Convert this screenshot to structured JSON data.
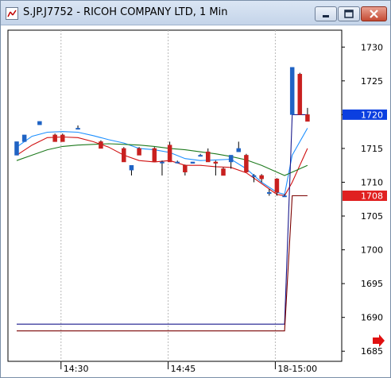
{
  "window": {
    "title": "S.JP.J7752 - RICOH COMPANY LTD, 1 Min",
    "controls": [
      "minimize",
      "maximize",
      "close"
    ]
  },
  "icons": {
    "app": "chart-icon",
    "minimize": "minimize-icon",
    "maximize": "maximize-icon",
    "close": "close-icon",
    "scroll": "red-arrow-right-icon"
  },
  "colors": {
    "up_candle": "#1f63c4",
    "down_candle": "#c8201f",
    "blue_line": "#1e90ff",
    "red_line": "#d01010",
    "green_line": "#1e7a1e",
    "navy_line": "#1a1a8c",
    "maroon_line": "#7a0000",
    "current_price_bg": "#0b3fe0",
    "current_low_bg": "#e02020"
  },
  "chart_data": {
    "type": "candlestick",
    "ylim": [
      1683.5,
      1732.5
    ],
    "y_ticks": [
      1730,
      1725,
      1720,
      1715,
      1710,
      1705,
      1700,
      1695,
      1690,
      1685
    ],
    "x_tick_labels": [
      "14:30",
      "14:45",
      "18-15:00"
    ],
    "current_price_label": "1720",
    "current_low_label": "1708",
    "candles": [
      {
        "t": 0,
        "o": 1714,
        "h": 1716,
        "l": 1714,
        "c": 1716
      },
      {
        "t": 1,
        "o": 1716,
        "h": 1717,
        "l": 1716,
        "c": 1717
      },
      {
        "t": 3,
        "o": 1718.5,
        "h": 1719,
        "l": 1718.5,
        "c": 1719
      },
      {
        "t": 5,
        "o": 1717,
        "h": 1717.2,
        "l": 1716,
        "c": 1716
      },
      {
        "t": 6,
        "o": 1717,
        "h": 1717.2,
        "l": 1716,
        "c": 1716
      },
      {
        "t": 8,
        "o": 1718,
        "h": 1718.4,
        "l": 1718,
        "c": 1718
      },
      {
        "t": 11,
        "o": 1716,
        "h": 1716.2,
        "l": 1715,
        "c": 1715
      },
      {
        "t": 14,
        "o": 1715,
        "h": 1715.2,
        "l": 1713,
        "c": 1713
      },
      {
        "t": 15,
        "o": 1711.8,
        "h": 1712.5,
        "l": 1711,
        "c": 1712.5
      },
      {
        "t": 16,
        "o": 1715,
        "h": 1715.2,
        "l": 1714,
        "c": 1714
      },
      {
        "t": 18,
        "o": 1715,
        "h": 1715.2,
        "l": 1713,
        "c": 1713
      },
      {
        "t": 19,
        "o": 1713,
        "h": 1713.2,
        "l": 1711,
        "c": 1713
      },
      {
        "t": 20,
        "o": 1715.5,
        "h": 1716,
        "l": 1713,
        "c": 1713
      },
      {
        "t": 21,
        "o": 1713,
        "h": 1713.2,
        "l": 1713,
        "c": 1713
      },
      {
        "t": 22,
        "o": 1712.5,
        "h": 1712.6,
        "l": 1711,
        "c": 1711.5
      },
      {
        "t": 23,
        "o": 1712.8,
        "h": 1713,
        "l": 1712.8,
        "c": 1713
      },
      {
        "t": 24,
        "o": 1714,
        "h": 1714.2,
        "l": 1714,
        "c": 1714
      },
      {
        "t": 25,
        "o": 1714.5,
        "h": 1715,
        "l": 1713,
        "c": 1713
      },
      {
        "t": 26,
        "o": 1713,
        "h": 1713.2,
        "l": 1711,
        "c": 1712.8
      },
      {
        "t": 27,
        "o": 1712,
        "h": 1712.2,
        "l": 1711,
        "c": 1711
      },
      {
        "t": 28,
        "o": 1713,
        "h": 1714,
        "l": 1712,
        "c": 1714
      },
      {
        "t": 29,
        "o": 1714.5,
        "h": 1716,
        "l": 1714.5,
        "c": 1715
      },
      {
        "t": 30,
        "o": 1714,
        "h": 1714.2,
        "l": 1711.5,
        "c": 1711.5
      },
      {
        "t": 31,
        "o": 1711,
        "h": 1711.2,
        "l": 1710,
        "c": 1711
      },
      {
        "t": 32,
        "o": 1711,
        "h": 1711.2,
        "l": 1710,
        "c": 1710.5
      },
      {
        "t": 33,
        "o": 1708.5,
        "h": 1709,
        "l": 1708,
        "c": 1708.5
      },
      {
        "t": 34,
        "o": 1710.5,
        "h": 1710.6,
        "l": 1708,
        "c": 1708.5
      },
      {
        "t": 35,
        "o": 1708,
        "h": 1708.2,
        "l": 1708,
        "c": 1708
      },
      {
        "t": 36,
        "o": 1720,
        "h": 1727,
        "l": 1720,
        "c": 1727
      },
      {
        "t": 37,
        "o": 1726,
        "h": 1726.2,
        "l": 1720,
        "c": 1720
      },
      {
        "t": 38,
        "o": 1720,
        "h": 1721,
        "l": 1719,
        "c": 1719
      }
    ],
    "series": [
      {
        "name": "",
        "color_key": "blue_line",
        "points": [
          [
            0,
            1715.2
          ],
          [
            2,
            1716.8
          ],
          [
            4,
            1717.4
          ],
          [
            6,
            1717.5
          ],
          [
            8,
            1717.4
          ],
          [
            10,
            1716.9
          ],
          [
            12,
            1716.3
          ],
          [
            14,
            1715.8
          ],
          [
            16,
            1715
          ],
          [
            18,
            1714.8
          ],
          [
            20,
            1714.4
          ],
          [
            22,
            1713.5
          ],
          [
            24,
            1713.2
          ],
          [
            26,
            1713.3
          ],
          [
            28,
            1713.4
          ],
          [
            30,
            1712
          ],
          [
            32,
            1710
          ],
          [
            34,
            1708.5
          ],
          [
            35,
            1708.2
          ],
          [
            36,
            1714
          ],
          [
            37,
            1716
          ],
          [
            38,
            1718
          ]
        ]
      },
      {
        "name": "",
        "color_key": "red_line",
        "points": [
          [
            0,
            1714
          ],
          [
            2,
            1715.5
          ],
          [
            4,
            1716.6
          ],
          [
            6,
            1716.7
          ],
          [
            8,
            1716.6
          ],
          [
            10,
            1716
          ],
          [
            12,
            1715.2
          ],
          [
            14,
            1714
          ],
          [
            16,
            1713.2
          ],
          [
            18,
            1713
          ],
          [
            20,
            1713.2
          ],
          [
            22,
            1712.5
          ],
          [
            24,
            1712.5
          ],
          [
            26,
            1712.3
          ],
          [
            28,
            1712.2
          ],
          [
            30,
            1711.4
          ],
          [
            32,
            1709.8
          ],
          [
            34,
            1708.2
          ],
          [
            35,
            1708
          ],
          [
            36,
            1710
          ],
          [
            37,
            1712.5
          ],
          [
            38,
            1715
          ]
        ]
      },
      {
        "name": "",
        "color_key": "green_line",
        "points": [
          [
            0,
            1713.2
          ],
          [
            2,
            1714
          ],
          [
            4,
            1714.8
          ],
          [
            6,
            1715.3
          ],
          [
            8,
            1715.5
          ],
          [
            10,
            1715.6
          ],
          [
            12,
            1715.7
          ],
          [
            14,
            1715.6
          ],
          [
            16,
            1715.5
          ],
          [
            18,
            1715.3
          ],
          [
            20,
            1715
          ],
          [
            22,
            1714.8
          ],
          [
            24,
            1714.5
          ],
          [
            26,
            1714.2
          ],
          [
            28,
            1713.8
          ],
          [
            30,
            1713.3
          ],
          [
            32,
            1712.5
          ],
          [
            34,
            1711.5
          ],
          [
            35,
            1711
          ],
          [
            36,
            1711.5
          ],
          [
            37,
            1712
          ],
          [
            38,
            1712.5
          ]
        ]
      },
      {
        "name": "",
        "color_key": "navy_line",
        "points": [
          [
            0,
            1689
          ],
          [
            35,
            1689
          ],
          [
            36,
            1720
          ],
          [
            37,
            1720
          ],
          [
            38,
            1720
          ]
        ]
      },
      {
        "name": "",
        "color_key": "maroon_line",
        "points": [
          [
            0,
            1688
          ],
          [
            35,
            1688
          ],
          [
            36,
            1708
          ],
          [
            37,
            1708
          ],
          [
            38,
            1708
          ]
        ]
      }
    ]
  }
}
